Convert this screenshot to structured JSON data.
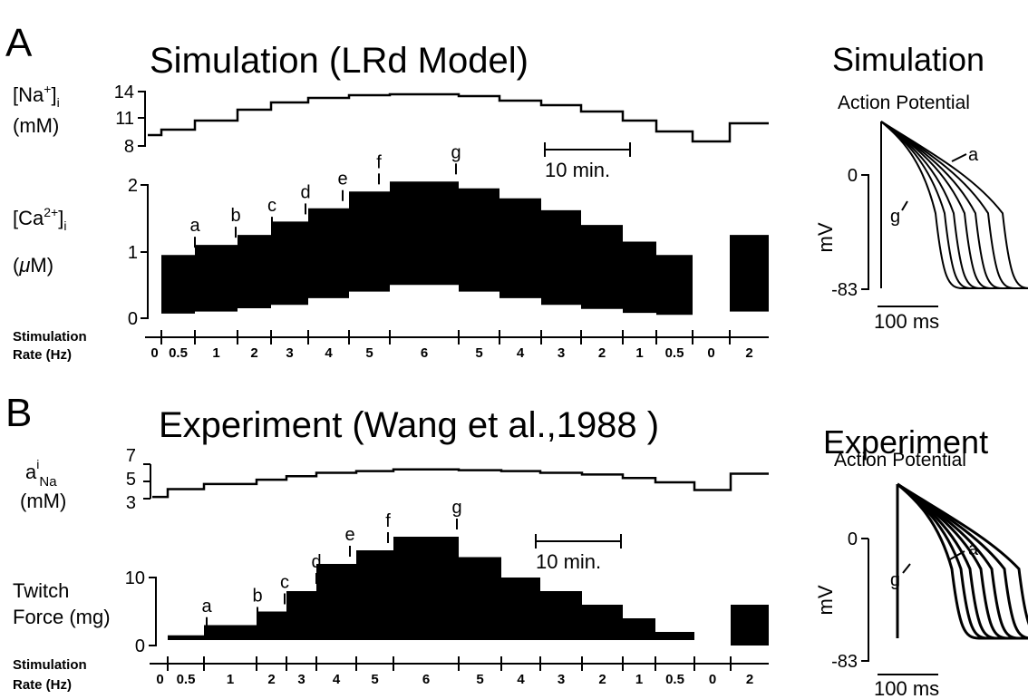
{
  "colors": {
    "ink": "#000000",
    "background": "#ffffff"
  },
  "panels": [
    {
      "letter": "A",
      "title": "Simulation (LRd Model)",
      "na_label": [
        "[Na",
        "+",
        "]",
        "i"
      ],
      "na_unit": "(mM)",
      "na_ticks": [
        "14",
        "11",
        "8"
      ],
      "ca_label": [
        "[Ca",
        "2+",
        "]",
        "i"
      ],
      "ca_unit_prefix": "(",
      "ca_unit_mu": "μ",
      "ca_unit_rest": "M)",
      "ca_ticks": [
        "2",
        "1",
        "0"
      ],
      "scalebar_label": "10 min.",
      "stim_label_1": "Stimulation",
      "stim_label_2": "Rate (Hz)",
      "rate_labels": [
        "0",
        "0.5",
        "1",
        "2",
        "3",
        "4",
        "5",
        "6",
        "5",
        "4",
        "3",
        "2",
        "1",
        "0.5",
        "0",
        "2"
      ],
      "markers": [
        "a",
        "b",
        "c",
        "d",
        "e",
        "f",
        "g"
      ],
      "side_title": "Simulation",
      "side_subtitle": "Action Potential",
      "side_zero": "0",
      "side_min": "-83",
      "side_unit": "mV",
      "side_time": "100 ms",
      "side_a": "a",
      "side_g": "g"
    },
    {
      "letter": "B",
      "title": "Experiment (Wang et al.,1988 )",
      "na_label_a": "a",
      "na_label_sup": "i",
      "na_label_sub": "Na",
      "na_unit": "(mM)",
      "na_ticks": [
        "7",
        "5",
        "3"
      ],
      "force_label_1": "Twitch",
      "force_label_2": "Force (mg)",
      "force_ticks": [
        "10",
        "0"
      ],
      "scalebar_label": "10 min.",
      "stim_label_1": "Stimulation",
      "stim_label_2": "Rate (Hz)",
      "rate_labels": [
        "0",
        "0.5",
        "1",
        "2",
        "3",
        "4",
        "5",
        "6",
        "5",
        "4",
        "3",
        "2",
        "1",
        "0.5",
        "0",
        "2"
      ],
      "markers": [
        "a",
        "b",
        "c",
        "d",
        "e",
        "f",
        "g"
      ],
      "side_title": "Experiment",
      "side_subtitle": "Action Potential",
      "side_zero": "0",
      "side_min": "-83",
      "side_unit": "mV",
      "side_time": "100 ms",
      "side_a": "a",
      "side_g": "g"
    }
  ],
  "chart_data": [
    {
      "type": "line",
      "panel": "A",
      "series": [
        {
          "quantity": "[Na+]i (mM)",
          "x_step_index": [
            0,
            1,
            2,
            3,
            4,
            5,
            6,
            7,
            8,
            9,
            10,
            11,
            12,
            13,
            14,
            15
          ],
          "values": [
            9.2,
            9.8,
            10.8,
            12.0,
            12.8,
            13.3,
            13.6,
            13.7,
            13.5,
            13.0,
            12.5,
            11.8,
            10.8,
            9.6,
            8.5,
            10.5
          ]
        },
        {
          "quantity": "[Ca2+]i (uM) peak",
          "x_step_index": [
            0,
            1,
            2,
            3,
            4,
            5,
            6,
            7,
            8,
            9,
            10,
            11,
            12,
            13,
            14,
            15
          ],
          "values": [
            0,
            0.95,
            1.1,
            1.25,
            1.45,
            1.65,
            1.9,
            2.05,
            1.95,
            1.8,
            1.62,
            1.4,
            1.15,
            0.95,
            0,
            1.25
          ]
        },
        {
          "quantity": "[Ca2+]i (uM) diastolic",
          "x_step_index": [
            0,
            1,
            2,
            3,
            4,
            5,
            6,
            7,
            8,
            9,
            10,
            11,
            12,
            13,
            14,
            15
          ],
          "values": [
            0,
            0.07,
            0.1,
            0.15,
            0.2,
            0.3,
            0.4,
            0.5,
            0.4,
            0.3,
            0.2,
            0.14,
            0.08,
            0.05,
            0,
            0.1
          ]
        }
      ],
      "categories": [
        "0",
        "0.5",
        "1",
        "2",
        "3",
        "4",
        "5",
        "6",
        "5",
        "4",
        "3",
        "2",
        "1",
        "0.5",
        "0",
        "2"
      ],
      "xlabel": "Stimulation Rate (Hz)",
      "ylim_na": [
        8,
        14
      ],
      "ylim_ca": [
        0,
        2
      ]
    },
    {
      "type": "line",
      "panel": "B",
      "series": [
        {
          "quantity": "a_i_Na (mM)",
          "x_step_index": [
            0,
            1,
            2,
            3,
            4,
            5,
            6,
            7,
            8,
            9,
            10,
            11,
            12,
            13,
            14,
            15
          ],
          "values": [
            3.2,
            4.1,
            4.7,
            5.2,
            5.6,
            6.0,
            6.2,
            6.4,
            6.3,
            6.2,
            6.0,
            5.8,
            5.4,
            4.9,
            4.0,
            5.9
          ]
        },
        {
          "quantity": "Twitch Force (mg) peak",
          "x_step_index": [
            0,
            1,
            2,
            3,
            4,
            5,
            6,
            7,
            8,
            9,
            10,
            11,
            12,
            13,
            14,
            15
          ],
          "values": [
            0,
            1.5,
            3,
            5,
            8,
            12,
            14,
            16,
            13,
            10,
            8,
            6,
            4,
            2,
            0,
            6
          ]
        }
      ],
      "categories": [
        "0",
        "0.5",
        "1",
        "2",
        "3",
        "4",
        "5",
        "6",
        "5",
        "4",
        "3",
        "2",
        "1",
        "0.5",
        "0",
        "2"
      ],
      "xlabel": "Stimulation Rate (Hz)",
      "ylim_na": [
        3,
        7
      ],
      "ylim_force": [
        0,
        10
      ]
    },
    {
      "type": "line",
      "panel": "A-AP",
      "series_labels": [
        "a",
        "g"
      ],
      "curves": 7,
      "ylim": [
        -83,
        0
      ],
      "ylabel": "mV"
    },
    {
      "type": "line",
      "panel": "B-AP",
      "series_labels": [
        "a",
        "g"
      ],
      "curves": 7,
      "ylim": [
        -83,
        0
      ],
      "ylabel": "mV"
    }
  ]
}
